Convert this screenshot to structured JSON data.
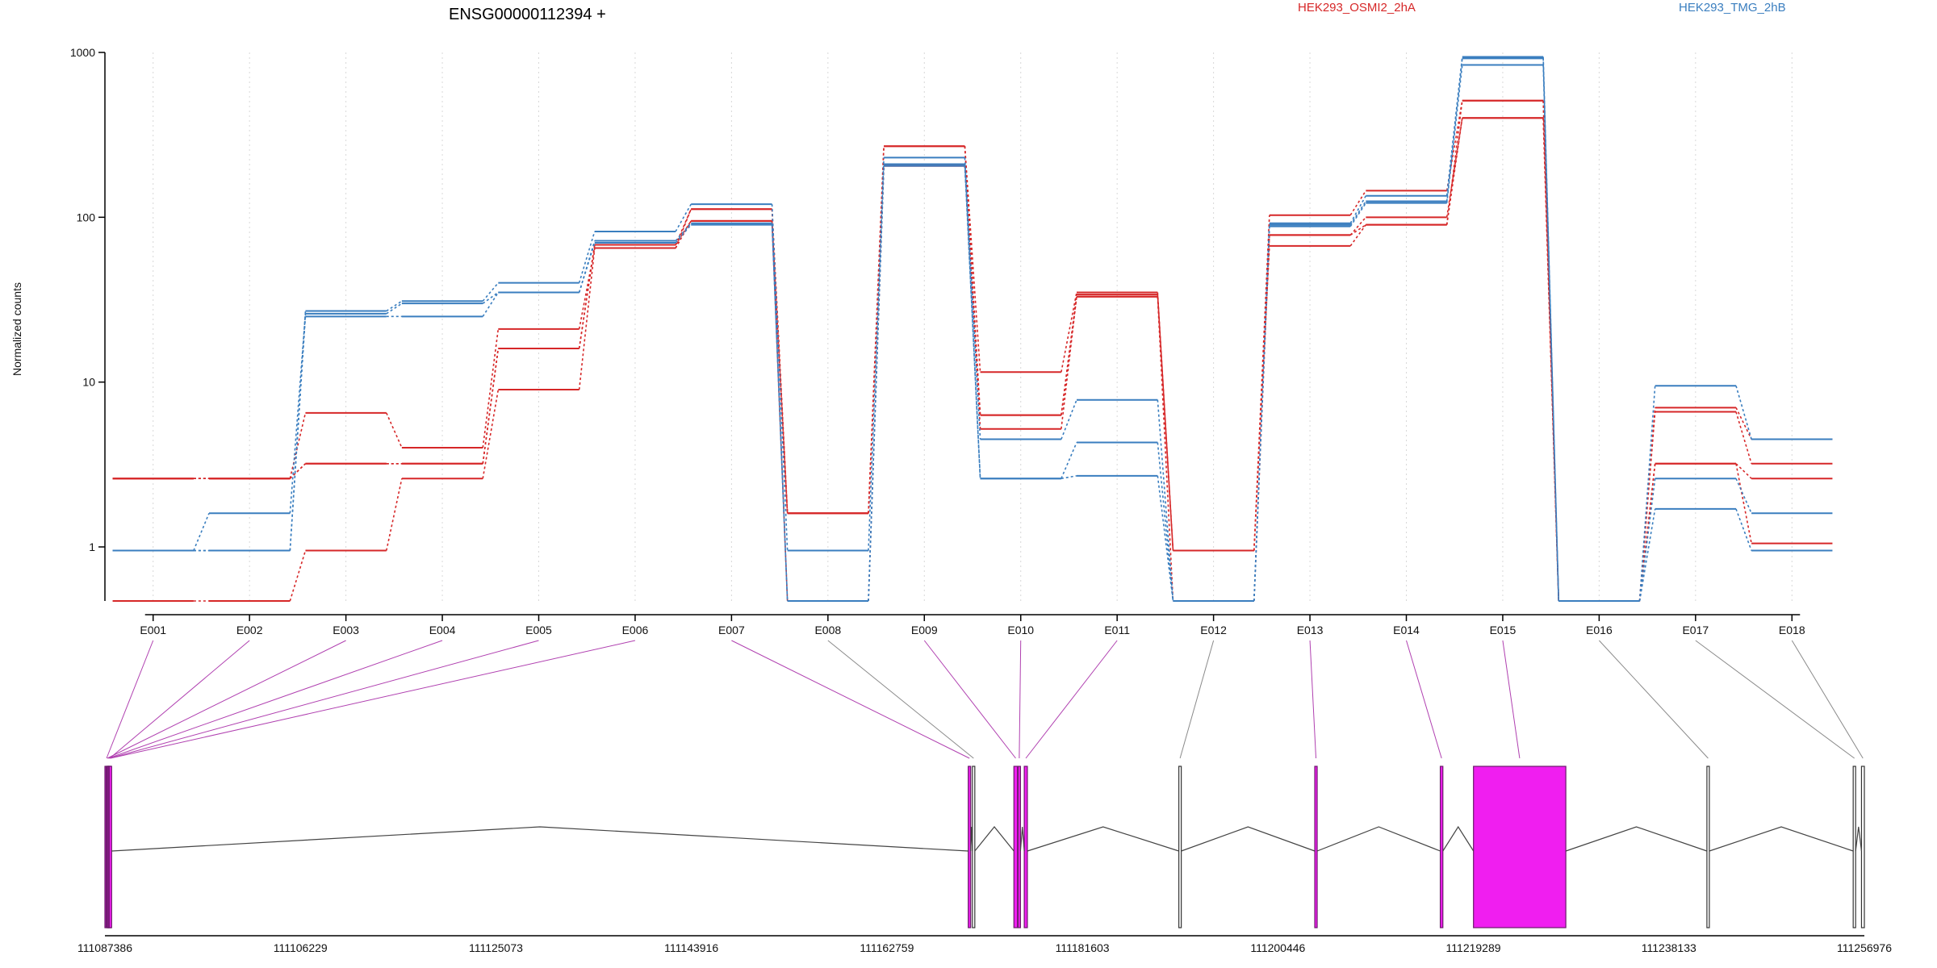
{
  "chart_data": {
    "type": "line",
    "title": "ENSG00000112394 +",
    "ylabel": "Normalized counts",
    "y_scale": "log",
    "ylim": [
      0.47,
      1000
    ],
    "y_ticks": [
      1,
      10,
      100,
      1000
    ],
    "y_tick_labels": [
      "1",
      "10",
      "100",
      "1000"
    ],
    "grid": "vertical dotted lines at exon columns",
    "legend": [
      {
        "label": "HEK293_OSMI2_2hA",
        "color": "#d62728"
      },
      {
        "label": "HEK293_TMG_2hB",
        "color": "#3a7ebf"
      }
    ],
    "categories": [
      "E001",
      "E002",
      "E003",
      "E004",
      "E005",
      "E006",
      "E007",
      "E008",
      "E009",
      "E010",
      "E011",
      "E012",
      "E013",
      "E014",
      "E015",
      "E016",
      "E017",
      "E018"
    ],
    "series": [
      {
        "group": "red",
        "values": [
          2.6,
          2.6,
          6.5,
          4.0,
          21,
          65,
          112,
          1.6,
          270,
          11.5,
          35,
          0.95,
          103,
          145,
          510,
          0.47,
          7.0,
          4.5
        ]
      },
      {
        "group": "red",
        "values": [
          2.6,
          2.6,
          3.2,
          3.2,
          16,
          68,
          95,
          1.6,
          270,
          6.3,
          34,
          0.95,
          78,
          100,
          400,
          0.47,
          6.6,
          3.2
        ]
      },
      {
        "group": "red",
        "values": [
          0.47,
          0.47,
          0.95,
          2.6,
          9,
          65,
          95,
          0.47,
          205,
          5.2,
          33,
          0.95,
          67,
          90,
          400,
          0.47,
          3.2,
          1.05
        ]
      },
      {
        "group": "red",
        "values": [
          2.6,
          2.6,
          3.2,
          3.2,
          16,
          68,
          112,
          1.6,
          205,
          6.3,
          33,
          0.47,
          78,
          90,
          510,
          0.47,
          3.2,
          2.6
        ]
      },
      {
        "group": "blue",
        "values": [
          0.95,
          0.95,
          27,
          31,
          40,
          82,
          120,
          0.95,
          230,
          4.5,
          7.8,
          0.47,
          92,
          135,
          940,
          0.47,
          9.5,
          4.5
        ]
      },
      {
        "group": "blue",
        "values": [
          0.95,
          1.6,
          26,
          30,
          35,
          70,
          90,
          0.47,
          210,
          2.6,
          4.3,
          0.47,
          90,
          125,
          920,
          0.47,
          2.6,
          1.6
        ]
      },
      {
        "group": "blue",
        "values": [
          0.95,
          0.95,
          25,
          25,
          35,
          72,
          92,
          0.47,
          205,
          2.6,
          2.7,
          0.47,
          88,
          122,
          840,
          0.47,
          1.7,
          0.95
        ]
      }
    ],
    "gene_model": {
      "x_ticks": [
        "111087386",
        "111106229",
        "111125073",
        "111143916",
        "111162759",
        "111181603",
        "111200446",
        "111219289",
        "111238133",
        "111256976"
      ],
      "exons": [
        {
          "id": "E001",
          "start": 111087386,
          "end": 111087700,
          "tested": true
        },
        {
          "id": "E002",
          "start": 111087700,
          "end": 111088000,
          "tested": true
        },
        {
          "id": "E003",
          "start": 111087500,
          "end": 111087700,
          "tested": true
        },
        {
          "id": "E004",
          "start": 111087600,
          "end": 111087800,
          "tested": true
        },
        {
          "id": "E005",
          "start": 111087700,
          "end": 111087900,
          "tested": true
        },
        {
          "id": "E006",
          "start": 111087800,
          "end": 111088000,
          "tested": true
        },
        {
          "id": "E007",
          "start": 111170600,
          "end": 111170800,
          "tested": true
        },
        {
          "id": "E008",
          "start": 111171000,
          "end": 111171200,
          "tested": false
        },
        {
          "id": "E009",
          "start": 111175000,
          "end": 111175350,
          "tested": true
        },
        {
          "id": "E010",
          "start": 111175400,
          "end": 111175600,
          "tested": true
        },
        {
          "id": "E011",
          "start": 111176000,
          "end": 111176300,
          "tested": true
        },
        {
          "id": "E012",
          "start": 111190900,
          "end": 111191000,
          "tested": false
        },
        {
          "id": "E013",
          "start": 111204000,
          "end": 111204200,
          "tested": true
        },
        {
          "id": "E014",
          "start": 111216100,
          "end": 111216350,
          "tested": true
        },
        {
          "id": "E015",
          "start": 111219300,
          "end": 111228200,
          "tested": true
        },
        {
          "id": "E016",
          "start": 111241800,
          "end": 111241900,
          "tested": false
        },
        {
          "id": "E017",
          "start": 111255900,
          "end": 111256000,
          "tested": false
        },
        {
          "id": "E018",
          "start": 111256700,
          "end": 111256976,
          "tested": false
        }
      ]
    }
  }
}
